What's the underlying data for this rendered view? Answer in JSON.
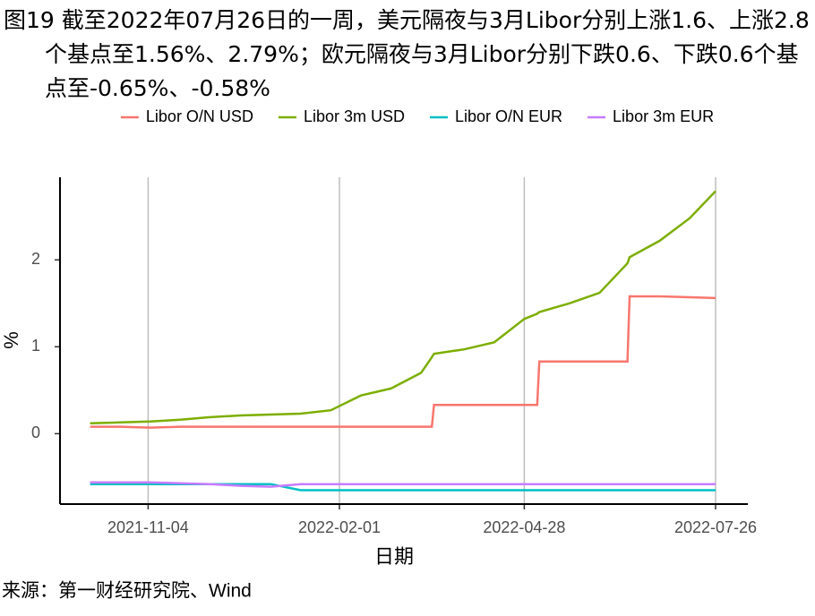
{
  "chart_data": {
    "type": "line",
    "title": "图19  截至2022年07月26日的一周，美元隔夜与3月Libor分别上涨1.6、上涨2.8个基点至1.56%、2.79%；欧元隔夜与3月Libor分别下跌0.6、下跌0.6个基点至-0.65%、-0.58%",
    "x_label": "日期",
    "y_label": "%",
    "source": "来源：第一财经研究院、Wind",
    "x": [
      "2021-10-08",
      "2021-10-22",
      "2021-11-05",
      "2021-11-19",
      "2021-12-03",
      "2021-12-17",
      "2021-12-31",
      "2022-01-14",
      "2022-01-28",
      "2022-02-11",
      "2022-02-25",
      "2022-03-11",
      "2022-03-16",
      "2022-03-17",
      "2022-03-31",
      "2022-04-14",
      "2022-04-28",
      "2022-05-04",
      "2022-05-05",
      "2022-05-19",
      "2022-06-02",
      "2022-06-15",
      "2022-06-16",
      "2022-06-30",
      "2022-07-14",
      "2022-07-26"
    ],
    "series": [
      {
        "name": "Libor O/N USD",
        "color": "#F8766D",
        "values": [
          0.08,
          0.08,
          0.07,
          0.08,
          0.08,
          0.08,
          0.08,
          0.08,
          0.08,
          0.08,
          0.08,
          0.08,
          0.08,
          0.33,
          0.33,
          0.33,
          0.33,
          0.33,
          0.83,
          0.83,
          0.83,
          0.83,
          1.58,
          1.58,
          1.57,
          1.56
        ]
      },
      {
        "name": "Libor 3m USD",
        "color": "#7CAE00",
        "values": [
          0.12,
          0.13,
          0.14,
          0.16,
          0.19,
          0.21,
          0.22,
          0.23,
          0.27,
          0.44,
          0.52,
          0.7,
          0.88,
          0.92,
          0.97,
          1.05,
          1.32,
          1.38,
          1.4,
          1.5,
          1.62,
          1.96,
          2.03,
          2.22,
          2.48,
          2.79
        ]
      },
      {
        "name": "Libor O/N EUR",
        "color": "#00BFC4",
        "values": [
          -0.58,
          -0.58,
          -0.58,
          -0.58,
          -0.58,
          -0.58,
          -0.58,
          -0.65,
          -0.65,
          -0.65,
          -0.65,
          -0.65,
          -0.65,
          -0.65,
          -0.65,
          -0.65,
          -0.65,
          -0.65,
          -0.65,
          -0.65,
          -0.65,
          -0.65,
          -0.65,
          -0.65,
          -0.65,
          -0.65
        ]
      },
      {
        "name": "Libor 3m EUR",
        "color": "#C77CFF",
        "values": [
          -0.56,
          -0.56,
          -0.56,
          -0.57,
          -0.58,
          -0.6,
          -0.61,
          -0.58,
          -0.58,
          -0.58,
          -0.58,
          -0.58,
          -0.58,
          -0.58,
          -0.58,
          -0.58,
          -0.58,
          -0.58,
          -0.58,
          -0.58,
          -0.58,
          -0.58,
          -0.58,
          -0.58,
          -0.58,
          -0.58
        ]
      }
    ],
    "xlim": [
      "2021-09-24",
      "2022-08-10"
    ],
    "xticks": [
      "2021-11-04",
      "2022-02-01",
      "2022-04-28",
      "2022-07-26"
    ],
    "ylim": [
      -0.81,
      2.95
    ],
    "yticks": [
      0,
      1,
      2
    ],
    "grid": "x",
    "legend": "top"
  }
}
